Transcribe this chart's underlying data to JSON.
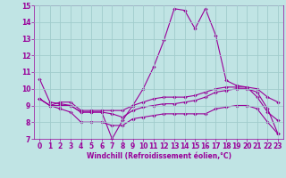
{
  "x": [
    0,
    1,
    2,
    3,
    4,
    5,
    6,
    7,
    8,
    9,
    10,
    11,
    12,
    13,
    14,
    15,
    16,
    17,
    18,
    19,
    20,
    21,
    22,
    23
  ],
  "line1": [
    10.6,
    9.2,
    9.1,
    9.0,
    8.6,
    8.6,
    8.6,
    7.0,
    8.1,
    9.0,
    10.0,
    11.3,
    12.9,
    14.8,
    14.7,
    13.6,
    14.8,
    13.2,
    10.5,
    10.2,
    10.1,
    9.5,
    8.6,
    8.1
  ],
  "line2": [
    9.4,
    9.0,
    9.2,
    9.2,
    8.7,
    8.7,
    8.7,
    8.7,
    8.7,
    9.0,
    9.2,
    9.4,
    9.5,
    9.5,
    9.5,
    9.6,
    9.8,
    10.0,
    10.1,
    10.1,
    10.1,
    10.0,
    9.5,
    9.2
  ],
  "line3": [
    9.4,
    9.0,
    9.0,
    9.0,
    8.6,
    8.6,
    8.6,
    8.5,
    8.3,
    8.7,
    8.9,
    9.0,
    9.1,
    9.1,
    9.2,
    9.3,
    9.5,
    9.8,
    9.9,
    10.0,
    10.0,
    9.8,
    8.8,
    7.3
  ],
  "line4": [
    9.4,
    9.0,
    8.8,
    8.6,
    8.0,
    8.0,
    8.0,
    7.8,
    7.8,
    8.2,
    8.3,
    8.4,
    8.5,
    8.5,
    8.5,
    8.5,
    8.5,
    8.8,
    8.9,
    9.0,
    9.0,
    8.8,
    8.0,
    7.3
  ],
  "color": "#990099",
  "bg_color": "#c0e4e4",
  "grid_color": "#a0cccc",
  "xlabel": "Windchill (Refroidissement éolien,°C)",
  "xlim": [
    -0.5,
    23.5
  ],
  "ylim": [
    7,
    15
  ],
  "yticks": [
    7,
    8,
    9,
    10,
    11,
    12,
    13,
    14,
    15
  ],
  "xticks": [
    0,
    1,
    2,
    3,
    4,
    5,
    6,
    7,
    8,
    9,
    10,
    11,
    12,
    13,
    14,
    15,
    16,
    17,
    18,
    19,
    20,
    21,
    22,
    23
  ],
  "tick_fontsize": 5.5,
  "xlabel_fontsize": 5.5,
  "lw": 0.8,
  "ms": 2.2
}
